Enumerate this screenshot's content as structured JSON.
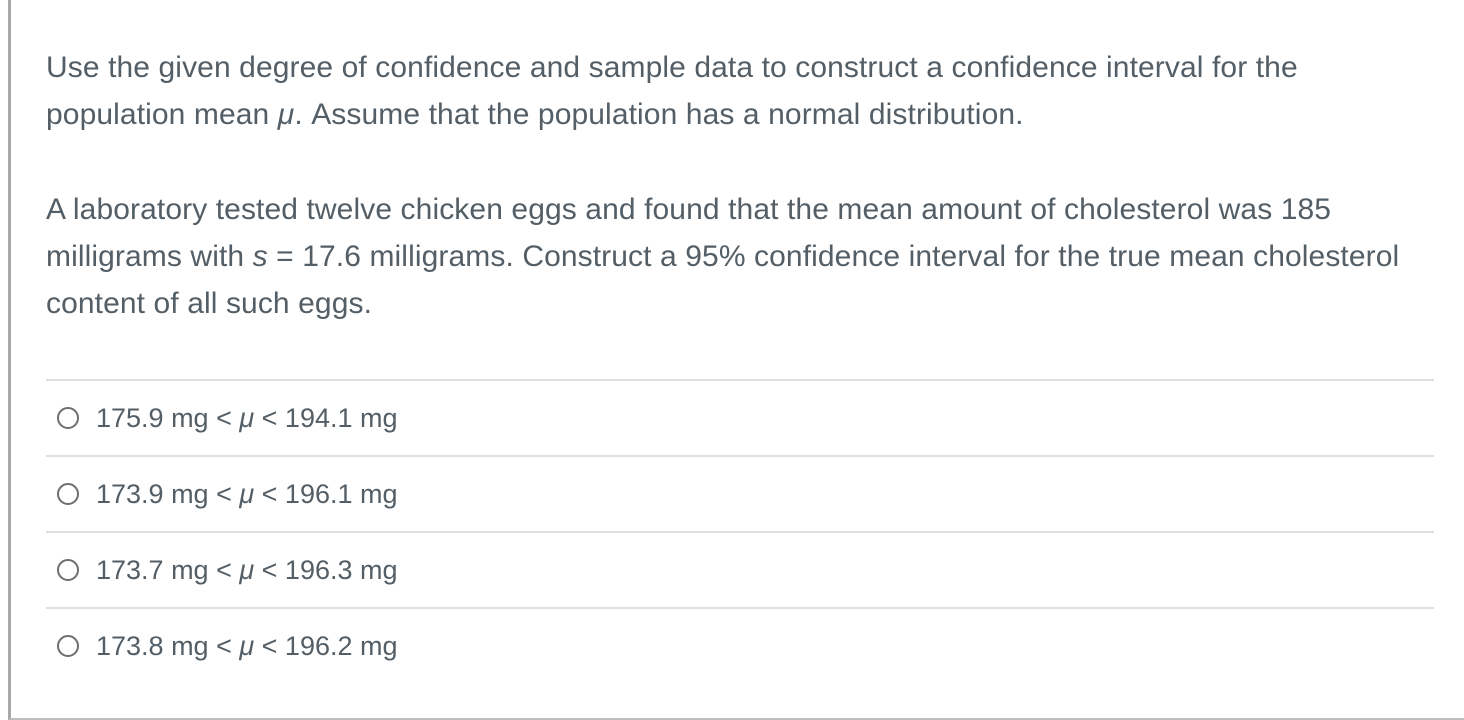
{
  "colors": {
    "text_color": "#535e66",
    "divider_color": "#dfdfdf",
    "left_border_color": "#a8a8a8",
    "bottom_border_color": "#bdbdbd",
    "radio_border_color": "#6e6e6e",
    "background": "#ffffff"
  },
  "question": {
    "instructions": [
      {
        "t": "Use the given degree of confidence and sample data to construct a confidence interval for the population mean "
      },
      {
        "t": "μ",
        "i": true
      },
      {
        "t": ". Assume that the population has a normal distribution."
      }
    ],
    "body": [
      {
        "t": "A laboratory tested twelve chicken eggs and found that the mean amount of cholesterol was 185 milligrams with "
      },
      {
        "t": "s",
        "i": true
      },
      {
        "t": " = 17.6 milligrams. Construct a 95% confidence interval for the true mean cholesterol content of all such eggs."
      }
    ]
  },
  "options": [
    {
      "selected": false,
      "label": [
        {
          "t": "175.9 mg < "
        },
        {
          "t": "μ",
          "i": true
        },
        {
          "t": " < 194.1 mg"
        }
      ]
    },
    {
      "selected": false,
      "label": [
        {
          "t": "173.9 mg < "
        },
        {
          "t": "μ",
          "i": true
        },
        {
          "t": " < 196.1 mg"
        }
      ]
    },
    {
      "selected": false,
      "label": [
        {
          "t": "173.7 mg < "
        },
        {
          "t": "μ",
          "i": true
        },
        {
          "t": " < 196.3 mg"
        }
      ]
    },
    {
      "selected": false,
      "label": [
        {
          "t": "173.8 mg < "
        },
        {
          "t": "μ",
          "i": true
        },
        {
          "t": " < 196.2 mg"
        }
      ]
    }
  ]
}
